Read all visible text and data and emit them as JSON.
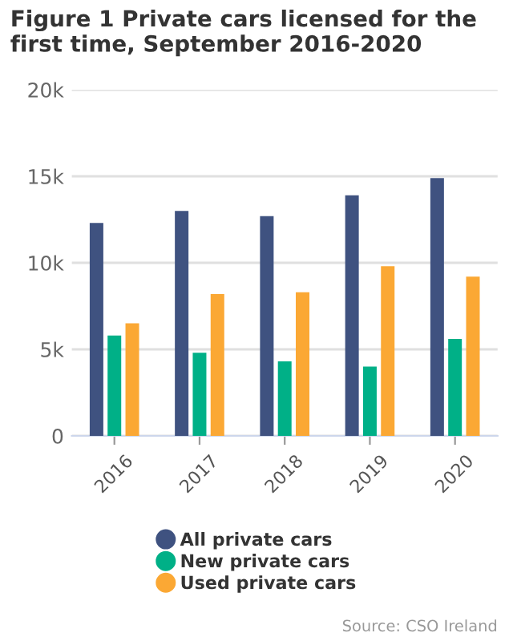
{
  "chart_data": {
    "type": "bar",
    "title": "Figure 1 Private cars licensed for the first time, September 2016-2020",
    "categories": [
      "2016",
      "2017",
      "2018",
      "2019",
      "2020"
    ],
    "series": [
      {
        "name": "All private cars",
        "color": "#3f5280",
        "values": [
          12.3,
          13.0,
          12.7,
          13.9,
          14.9
        ]
      },
      {
        "name": "New private cars",
        "color": "#00b087",
        "values": [
          5.8,
          4.8,
          4.3,
          4.0,
          5.6
        ]
      },
      {
        "name": "Used private cars",
        "color": "#fba834",
        "values": [
          6.5,
          8.2,
          8.3,
          9.8,
          9.2
        ]
      }
    ],
    "ylim": [
      0,
      20
    ],
    "yticks": [
      0,
      {
        "value": 5,
        "label": "5k"
      },
      {
        "value": 10,
        "label": "10k"
      },
      {
        "value": 15,
        "label": "15k"
      },
      {
        "value": 20,
        "label": "20k"
      }
    ],
    "grid": "y",
    "legend": "bottom",
    "marker": "circle",
    "annotations": [
      "Source: CSO Ireland"
    ]
  }
}
